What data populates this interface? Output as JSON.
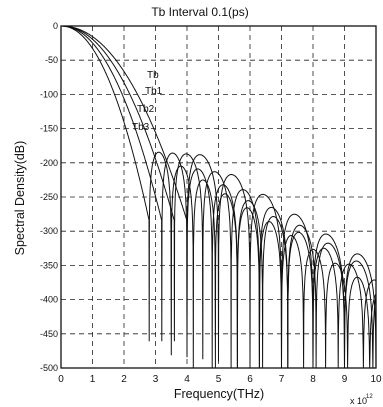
{
  "chart_data": {
    "type": "line",
    "title": "Tb Interval 0.1(ps)",
    "xlabel": "Frequency(THz)",
    "ylabel": "Spectral Density(dB)",
    "x_multiplier": "x 10",
    "x_multiplier_exp": "12",
    "xlim": [
      0,
      10
    ],
    "ylim": [
      -500,
      0
    ],
    "grid": true,
    "xticks": [
      "0",
      "1",
      "2",
      "3",
      "4",
      "5",
      "6",
      "7",
      "8",
      "9",
      "10"
    ],
    "yticks": [
      "0",
      "-50",
      "-100",
      "-150",
      "-200",
      "-250",
      "-300",
      "-350",
      "-400",
      "-450",
      "-500"
    ],
    "series": [
      {
        "name": "Tb",
        "null_spacing": 1.0,
        "main_lobe_null": 4.0
      },
      {
        "name": "Tb1",
        "null_spacing": 0.9,
        "main_lobe_null": 3.6
      },
      {
        "name": "Tb2",
        "null_spacing": 0.8,
        "main_lobe_null": 3.2
      },
      {
        "name": "Tb3",
        "null_spacing": 0.7,
        "main_lobe_null": 2.8
      }
    ],
    "series_labels": [
      "Tb",
      "Tb1",
      "Tb2",
      "Tb3"
    ]
  }
}
